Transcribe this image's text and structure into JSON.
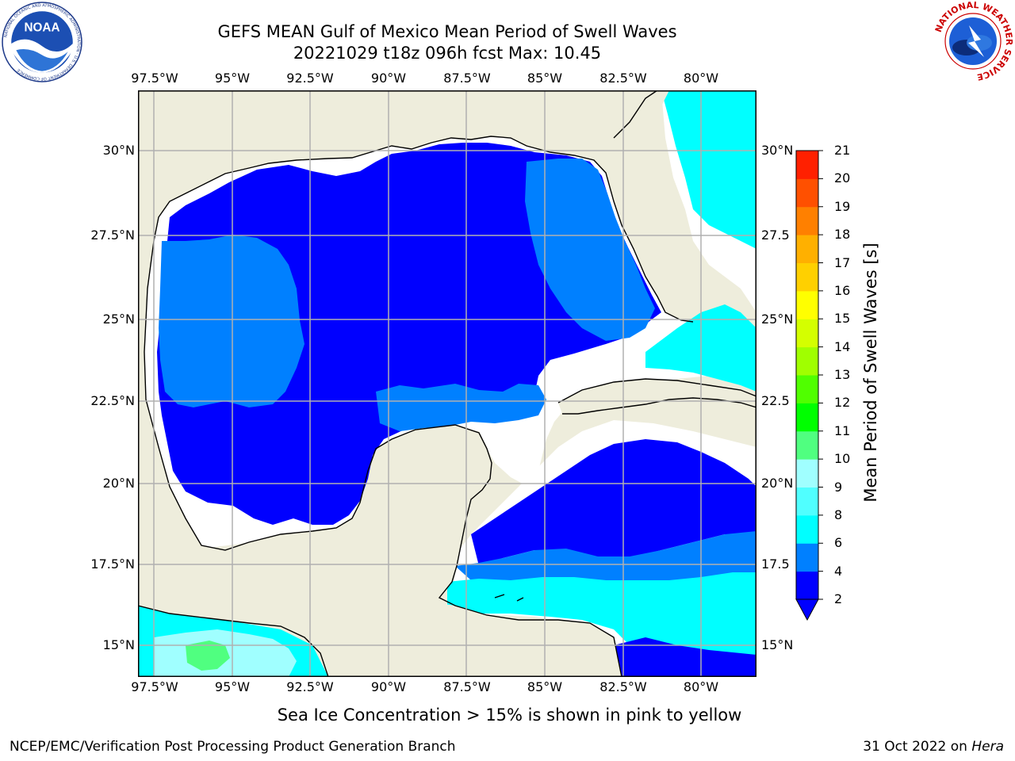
{
  "title": {
    "line1": "GEFS MEAN Gulf of Mexico Mean Period of Swell Waves",
    "line2": "20221029 t18z 096h fcst   Max: 10.45"
  },
  "logos": {
    "left": {
      "icon": "noaa-logo",
      "text": "NOAA",
      "ring_text": "NATIONAL OCEANIC AND ATMOSPHERIC ADMINISTRATION · U.S. DEPARTMENT OF COMMERCE"
    },
    "right": {
      "icon": "nws-logo",
      "ring_text": "NATIONAL WEATHER SERVICE"
    }
  },
  "map": {
    "projection": "lat-lon",
    "lon_range": [
      -98,
      -78.3
    ],
    "lat_range": [
      14,
      32
    ],
    "land_color": "#eeeddc",
    "no_data_color": "#ffffff",
    "grid": true,
    "lon_ticks": [
      "97.5°W",
      "95°W",
      "92.5°W",
      "90°W",
      "87.5°W",
      "85°W",
      "82.5°W",
      "80°W"
    ],
    "lat_ticks_left": [
      "30°N",
      "27.5°N",
      "25°N",
      "22.5°N",
      "20°N",
      "17.5°N",
      "15°N"
    ],
    "lat_ticks_right": [
      "30°N",
      "27.5",
      "25°N",
      "22.5",
      "20°N",
      "17.5",
      "15°N"
    ]
  },
  "colorbar": {
    "title": "Mean Period of Swell Waves [s]",
    "levels": [
      "2",
      "4",
      "6",
      "8",
      "9",
      "10",
      "11",
      "12",
      "13",
      "14",
      "15",
      "16",
      "17",
      "18",
      "19",
      "20",
      "21"
    ],
    "colors": [
      "#0000ff",
      "#0080ff",
      "#00ffff",
      "#50ffff",
      "#a0ffff",
      "#50ff80",
      "#00ff00",
      "#50ff00",
      "#a0ff00",
      "#d4ff00",
      "#ffff00",
      "#ffd000",
      "#ffb000",
      "#ff8000",
      "#ff5000",
      "#ff2000",
      "#ff0000"
    ],
    "under_color": "#0000ff"
  },
  "footnote": "Sea Ice Concentration > 15% is shown in pink to yellow",
  "credit": {
    "left": "NCEP/EMC/Verification Post Processing Product Generation Branch",
    "right_prefix": "31 Oct 2022 on ",
    "right_machine": "Hera"
  }
}
